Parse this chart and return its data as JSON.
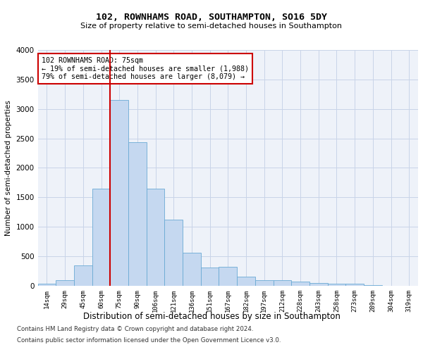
{
  "title": "102, ROWNHAMS ROAD, SOUTHAMPTON, SO16 5DY",
  "subtitle": "Size of property relative to semi-detached houses in Southampton",
  "xlabel": "Distribution of semi-detached houses by size in Southampton",
  "ylabel": "Number of semi-detached properties",
  "footnote1": "Contains HM Land Registry data © Crown copyright and database right 2024.",
  "footnote2": "Contains public sector information licensed under the Open Government Licence v3.0.",
  "annotation_line1": "102 ROWNHAMS ROAD: 75sqm",
  "annotation_line2": "← 19% of semi-detached houses are smaller (1,988)",
  "annotation_line3": "79% of semi-detached houses are larger (8,079) →",
  "bar_color": "#c5d8f0",
  "bar_edge_color": "#6aaad4",
  "vline_color": "#cc0000",
  "annotation_box_edge_color": "#cc0000",
  "grid_color": "#c8d4e8",
  "bg_color": "#eef2f9",
  "categories": [
    "14sqm",
    "29sqm",
    "45sqm",
    "60sqm",
    "75sqm",
    "90sqm",
    "106sqm",
    "121sqm",
    "136sqm",
    "151sqm",
    "167sqm",
    "182sqm",
    "197sqm",
    "212sqm",
    "228sqm",
    "243sqm",
    "258sqm",
    "273sqm",
    "289sqm",
    "304sqm",
    "319sqm"
  ],
  "values": [
    40,
    90,
    340,
    1650,
    3150,
    2430,
    1650,
    1120,
    560,
    310,
    320,
    155,
    95,
    95,
    75,
    50,
    40,
    30,
    12,
    4,
    4
  ],
  "ylim": [
    0,
    4000
  ],
  "yticks": [
    0,
    500,
    1000,
    1500,
    2000,
    2500,
    3000,
    3500,
    4000
  ],
  "prop_category": "75sqm",
  "vline_bar_index": 4
}
